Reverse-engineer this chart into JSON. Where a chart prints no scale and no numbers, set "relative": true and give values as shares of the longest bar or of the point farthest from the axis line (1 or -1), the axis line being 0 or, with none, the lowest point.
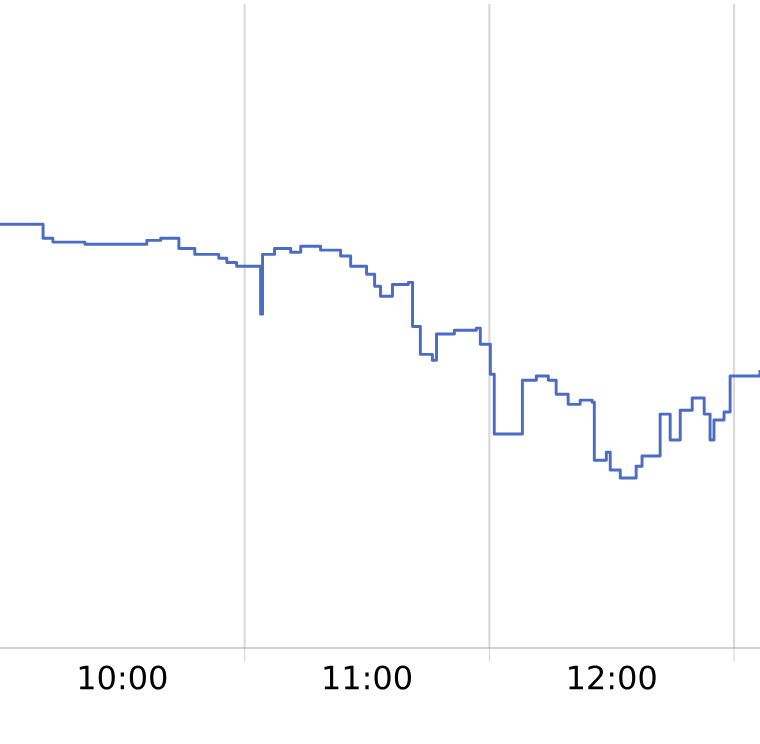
{
  "chart_data": {
    "type": "step",
    "relative": true,
    "color": "#4a6cc4",
    "grid": "x",
    "xlim": [
      9.5,
      12.606
    ],
    "xticks": [
      {
        "value": 10,
        "label": "10:00"
      },
      {
        "value": 10.5,
        "label": null
      },
      {
        "value": 11,
        "label": "11:00"
      },
      {
        "value": 11.5,
        "label": null
      },
      {
        "value": 12,
        "label": "12:00"
      },
      {
        "value": 12.5,
        "label": null
      }
    ],
    "x": [
      9.5,
      9.676,
      9.716,
      9.847,
      10.1,
      10.157,
      10.231,
      10.296,
      10.394,
      10.427,
      10.467,
      10.565,
      10.573,
      10.622,
      10.688,
      10.729,
      10.81,
      10.892,
      10.933,
      10.998,
      11.031,
      11.055,
      11.104,
      11.169,
      11.186,
      11.218,
      11.267,
      11.284,
      11.357,
      11.447,
      11.463,
      11.504,
      11.52,
      11.635,
      11.692,
      11.741,
      11.773,
      11.822,
      11.871,
      11.92,
      11.929,
      11.978,
      11.994,
      12.035,
      12.1,
      12.124,
      12.198,
      12.239,
      12.28,
      12.329,
      12.378,
      12.402,
      12.418,
      12.459,
      12.484,
      12.606
    ],
    "values": [
      1.0,
      0.967,
      0.958,
      0.953,
      0.962,
      0.967,
      0.943,
      0.929,
      0.92,
      0.91,
      0.901,
      0.788,
      0.929,
      0.943,
      0.934,
      0.948,
      0.939,
      0.925,
      0.901,
      0.882,
      0.854,
      0.83,
      0.858,
      0.863,
      0.759,
      0.693,
      0.679,
      0.741,
      0.75,
      0.755,
      0.717,
      0.646,
      0.505,
      0.632,
      0.642,
      0.632,
      0.599,
      0.575,
      0.585,
      0.58,
      0.443,
      0.462,
      0.42,
      0.401,
      0.429,
      0.453,
      0.552,
      0.491,
      0.561,
      0.59,
      0.552,
      0.491,
      0.538,
      0.557,
      0.642,
      0.656
    ]
  }
}
